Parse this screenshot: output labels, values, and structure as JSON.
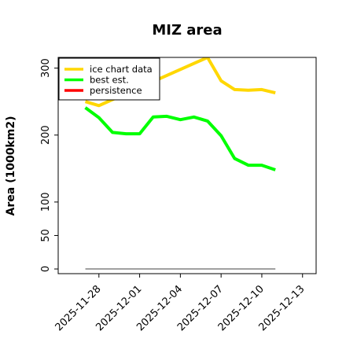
{
  "chart_data": {
    "type": "line",
    "title": "MIZ area",
    "xlabel": "",
    "ylabel": "Area (1000km2)",
    "x_tick_labels": [
      "2025-11-28",
      "2025-12-01",
      "2025-12-04",
      "2025-12-07",
      "2025-12-10",
      "2025-12-13"
    ],
    "y_ticks": [
      0,
      50,
      100,
      200,
      300
    ],
    "ylim": [
      -7,
      316
    ],
    "xlim": [
      "2025-11-25",
      "2025-12-14"
    ],
    "grid": false,
    "legend_position": "top-left",
    "series": [
      {
        "name": "ice chart data",
        "color": "#ffd700",
        "x": [
          "2025-11-27",
          "2025-11-28",
          "2025-12-06",
          "2025-12-07",
          "2025-12-08",
          "2025-12-09",
          "2025-12-10",
          "2025-12-11"
        ],
        "y": [
          250,
          244,
          316,
          281,
          268,
          267,
          268,
          263
        ]
      },
      {
        "name": "best est.",
        "color": "#00ff00",
        "x": [
          "2025-11-27",
          "2025-11-28",
          "2025-11-29",
          "2025-11-30",
          "2025-12-01",
          "2025-12-02",
          "2025-12-03",
          "2025-12-04",
          "2025-12-05",
          "2025-12-06",
          "2025-12-07",
          "2025-12-08",
          "2025-12-09",
          "2025-12-10",
          "2025-12-11"
        ],
        "y": [
          241,
          226,
          204,
          202,
          202,
          227,
          228,
          223,
          227,
          221,
          199,
          165,
          155,
          155,
          148
        ]
      },
      {
        "name": "persistence",
        "color": "#ff0000",
        "x": [],
        "y": []
      }
    ],
    "baseline": {
      "color": "#808080",
      "x": [
        "2025-11-27",
        "2025-12-11"
      ],
      "y": [
        0,
        0
      ]
    }
  }
}
